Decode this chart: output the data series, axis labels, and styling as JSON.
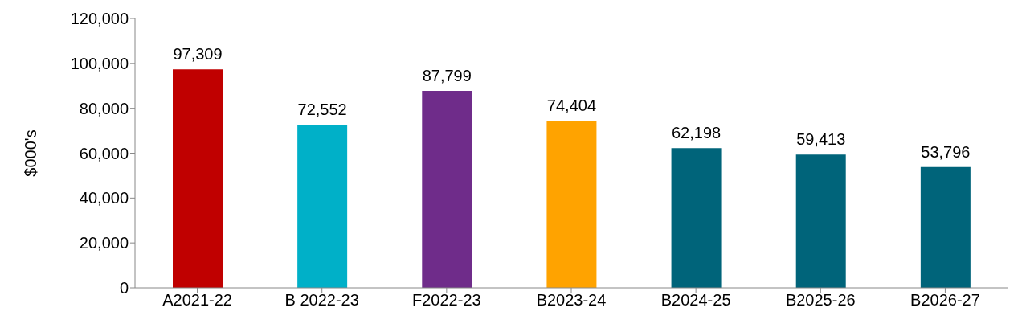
{
  "chart_data": {
    "type": "bar",
    "ylabel": "$000's",
    "categories": [
      "A2021-22",
      "B 2022-23",
      "F2022-23",
      "B2023-24",
      "B2024-25",
      "B2025-26",
      "B2026-27"
    ],
    "values": [
      97309,
      72552,
      87799,
      74404,
      62198,
      59413,
      53796
    ],
    "value_labels": [
      "97,309",
      "72,552",
      "87,799",
      "74,404",
      "62,198",
      "59,413",
      "53,796"
    ],
    "colors": [
      "#c00000",
      "#00b0c8",
      "#6f2c8a",
      "#ffa300",
      "#00647a",
      "#00647a",
      "#00647a"
    ],
    "ylim": [
      0,
      120000
    ],
    "yticks": [
      0,
      {
        "value": 20000,
        "label": "20,000"
      },
      {
        "value": 40000,
        "label": "40,000"
      },
      {
        "value": 60000,
        "label": "60,000"
      },
      {
        "value": 80000,
        "label": "80,000"
      },
      {
        "value": 100000,
        "label": "100,000"
      },
      {
        "value": 120000,
        "label": "120,000"
      }
    ],
    "grid": false,
    "legend": false
  }
}
